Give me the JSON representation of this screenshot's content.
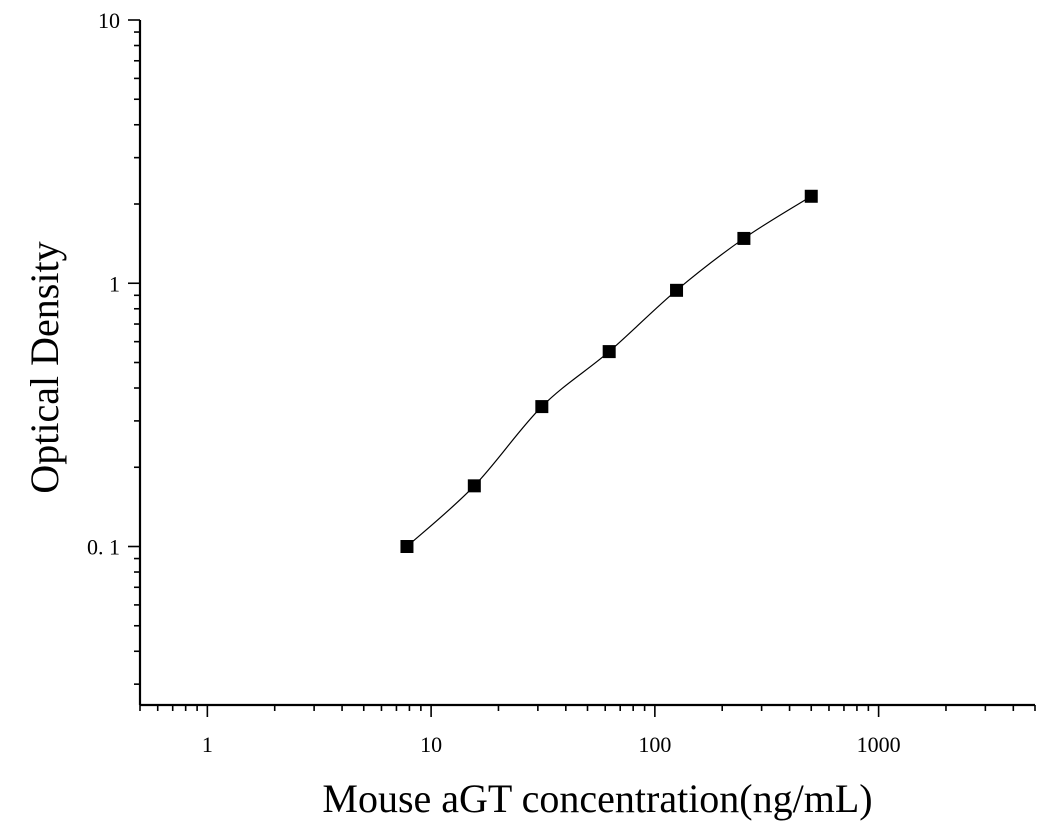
{
  "chart_data": {
    "type": "scatter",
    "xlabel": "Mouse aGT concentration(ng/mL)",
    "ylabel": "Optical Density",
    "x_scale": "log",
    "y_scale": "log",
    "xlim": [
      0.5,
      5000
    ],
    "ylim": [
      0.025,
      10
    ],
    "x_ticks": [
      {
        "value": 1,
        "label": "1"
      },
      {
        "value": 10,
        "label": "10"
      },
      {
        "value": 100,
        "label": "100"
      },
      {
        "value": 1000,
        "label": "1000"
      }
    ],
    "y_ticks": [
      {
        "value": 0.1,
        "label": "0. 1"
      },
      {
        "value": 1,
        "label": "1"
      },
      {
        "value": 10,
        "label": "10"
      }
    ],
    "grid": false,
    "series": [
      {
        "marker": "square",
        "fit_line": true,
        "color": "#000000",
        "points": [
          {
            "x": 7.8,
            "y": 0.1
          },
          {
            "x": 15.6,
            "y": 0.17
          },
          {
            "x": 31.25,
            "y": 0.34
          },
          {
            "x": 62.5,
            "y": 0.55
          },
          {
            "x": 125,
            "y": 0.94
          },
          {
            "x": 250,
            "y": 1.48
          },
          {
            "x": 500,
            "y": 2.14
          }
        ]
      }
    ]
  }
}
